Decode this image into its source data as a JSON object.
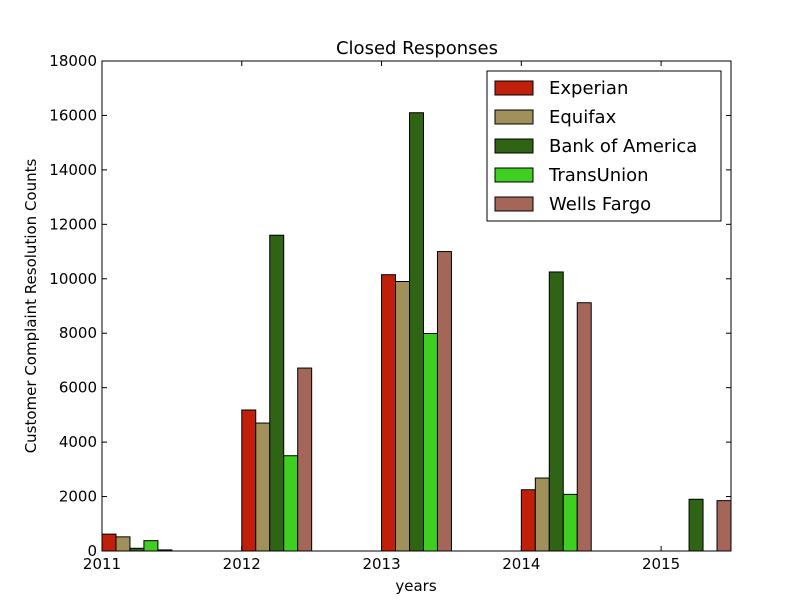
{
  "chart_data": {
    "type": "bar",
    "title": "Closed Responses",
    "xlabel": "years",
    "ylabel": "Customer Complaint Resolution Counts",
    "xlim": [
      2011,
      2015.5
    ],
    "ylim": [
      0,
      18000
    ],
    "x_ticks": [
      "2011",
      "2012",
      "2013",
      "2014",
      "2015"
    ],
    "y_ticks": [
      "0",
      "2000",
      "4000",
      "6000",
      "8000",
      "10000",
      "12000",
      "14000",
      "16000",
      "18000"
    ],
    "legend_position": "top-right",
    "grid": false,
    "categories": [
      "2011",
      "2012",
      "2013",
      "2014",
      "2015"
    ],
    "series": [
      {
        "name": "Experian",
        "color": "#c0200a",
        "values": [
          620,
          5180,
          10150,
          2250,
          0
        ]
      },
      {
        "name": "Equifax",
        "color": "#a0915b",
        "values": [
          520,
          4700,
          9900,
          2680,
          0
        ]
      },
      {
        "name": "Bank of America",
        "color": "#2f6414",
        "values": [
          100,
          11600,
          16100,
          10250,
          1900
        ]
      },
      {
        "name": "TransUnion",
        "color": "#3fce22",
        "values": [
          380,
          3500,
          7990,
          2080,
          0
        ]
      },
      {
        "name": "Wells Fargo",
        "color": "#a5665a",
        "values": [
          40,
          6720,
          11000,
          9120,
          1850
        ]
      }
    ]
  }
}
